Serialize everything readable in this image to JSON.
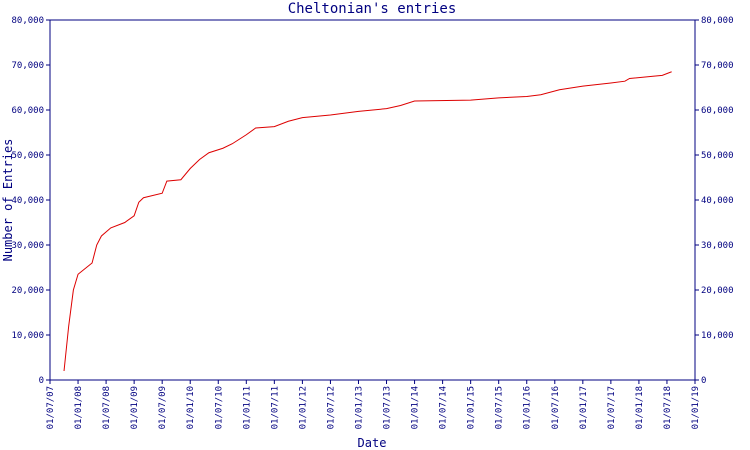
{
  "chart_data": {
    "type": "line",
    "title": "Cheltonian's entries",
    "x_label": "Date",
    "y_label": "Number of Entries",
    "x": [
      "2007-10",
      "2007-11",
      "2007-12",
      "2008-01",
      "2008-04",
      "2008-05",
      "2008-06",
      "2008-08",
      "2008-11",
      "2009-01",
      "2009-02",
      "2009-03",
      "2009-07",
      "2009-08",
      "2009-11",
      "2010-01",
      "2010-03",
      "2010-05",
      "2010-08",
      "2010-10",
      "2011-01",
      "2011-03",
      "2011-07",
      "2011-10",
      "2012-01",
      "2012-07",
      "2013-01",
      "2013-07",
      "2013-10",
      "2014-01",
      "2015-01",
      "2015-07",
      "2016-01",
      "2016-04",
      "2016-08",
      "2017-01",
      "2017-07",
      "2017-10",
      "2017-11",
      "2018-04",
      "2018-06",
      "2018-08"
    ],
    "series": [
      {
        "name": "Entries",
        "color": "#dd0000",
        "values": [
          2000,
          12000,
          20000,
          23500,
          26000,
          30000,
          32000,
          33800,
          35000,
          36500,
          39500,
          40500,
          41500,
          44200,
          44500,
          47000,
          49000,
          50500,
          51500,
          52500,
          54500,
          56000,
          56300,
          57500,
          58300,
          58900,
          59700,
          60300,
          61000,
          62000,
          62200,
          62700,
          63000,
          63400,
          64500,
          65300,
          66000,
          66400,
          67000,
          67500,
          67700,
          68500
        ]
      }
    ],
    "xlim": [
      "2007-07",
      "2019-01"
    ],
    "xticks": [
      {
        "value": "2007-07",
        "label": "01/07/07"
      },
      {
        "value": "2008-01",
        "label": "01/01/08"
      },
      {
        "value": "2008-07",
        "label": "01/07/08"
      },
      {
        "value": "2009-01",
        "label": "01/01/09"
      },
      {
        "value": "2009-07",
        "label": "01/07/09"
      },
      {
        "value": "2010-01",
        "label": "01/01/10"
      },
      {
        "value": "2010-07",
        "label": "01/07/10"
      },
      {
        "value": "2011-01",
        "label": "01/01/11"
      },
      {
        "value": "2011-07",
        "label": "01/07/11"
      },
      {
        "value": "2012-01",
        "label": "01/01/12"
      },
      {
        "value": "2012-07",
        "label": "01/07/12"
      },
      {
        "value": "2013-01",
        "label": "01/01/13"
      },
      {
        "value": "2013-07",
        "label": "01/07/13"
      },
      {
        "value": "2014-01",
        "label": "01/01/14"
      },
      {
        "value": "2014-07",
        "label": "01/07/14"
      },
      {
        "value": "2015-01",
        "label": "01/01/15"
      },
      {
        "value": "2015-07",
        "label": "01/07/15"
      },
      {
        "value": "2016-01",
        "label": "01/01/16"
      },
      {
        "value": "2016-07",
        "label": "01/07/16"
      },
      {
        "value": "2017-01",
        "label": "01/01/17"
      },
      {
        "value": "2017-07",
        "label": "01/07/17"
      },
      {
        "value": "2018-01",
        "label": "01/01/18"
      },
      {
        "value": "2018-07",
        "label": "01/07/18"
      },
      {
        "value": "2019-01",
        "label": "01/01/19"
      }
    ],
    "ylim": [
      0,
      80000
    ],
    "yticks": [
      0,
      {
        "value": 10000,
        "label": "10,000"
      },
      {
        "value": 20000,
        "label": "20,000"
      },
      {
        "value": 30000,
        "label": "30,000"
      },
      {
        "value": 40000,
        "label": "40,000"
      },
      {
        "value": 50000,
        "label": "50,000"
      },
      {
        "value": 60000,
        "label": "60,000"
      },
      {
        "value": 70000,
        "label": "70,000"
      },
      {
        "value": 80000,
        "label": "80,000"
      }
    ],
    "y2lim": [
      0,
      80000
    ],
    "y2ticks": [
      0,
      {
        "value": 10000,
        "label": "10,000"
      },
      {
        "value": 20000,
        "label": "20,000"
      },
      {
        "value": 30000,
        "label": "30,000"
      },
      {
        "value": 40000,
        "label": "40,000"
      },
      {
        "value": 50000,
        "label": "50,000"
      },
      {
        "value": 60000,
        "label": "60,000"
      },
      {
        "value": 70000,
        "label": "70,000"
      },
      {
        "value": 80000,
        "label": "80,000"
      }
    ]
  }
}
